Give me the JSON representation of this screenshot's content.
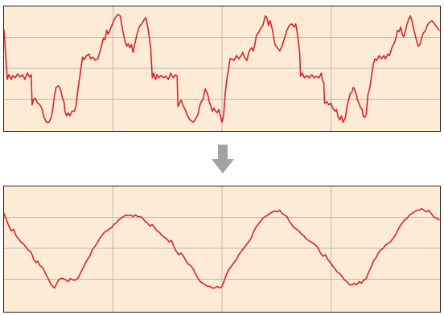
{
  "colors": {
    "panel_background": "#fdebd6",
    "panel_border": "#222222",
    "grid": "#b9b9b9",
    "signal": "#d8232a",
    "arrow": "#a3a3a3"
  },
  "grid": {
    "vertical_divisions": 4,
    "horizontal_divisions": 4
  },
  "icons": {
    "transform_arrow": "arrow-down-icon"
  }
}
